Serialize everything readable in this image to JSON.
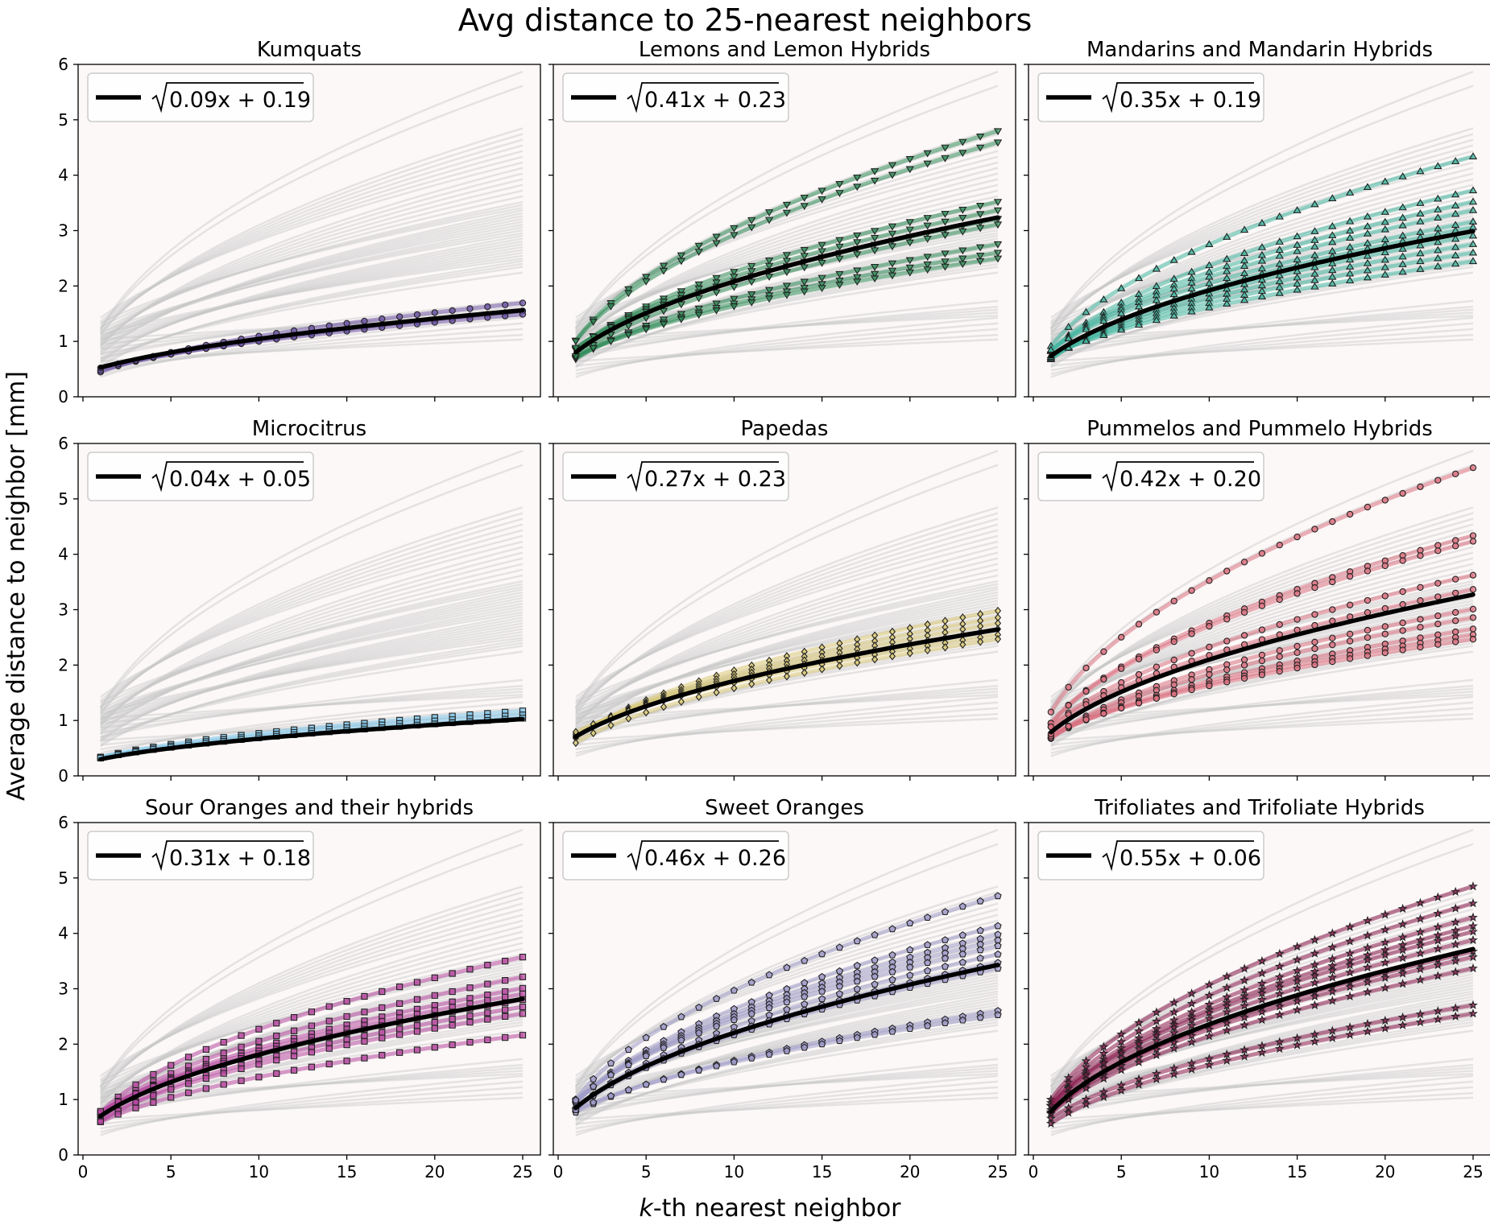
{
  "figure": {
    "title": "Avg distance to 25-nearest neighbors",
    "xlabel_italic": "k",
    "xlabel_rest": "-th nearest neighbor",
    "ylabel": "Average distance to neighbor [mm]"
  },
  "chart_data": [
    {
      "type": "line",
      "title": "Kumquats",
      "legend": "0.09x + 0.19",
      "fit": {
        "a": 0.09,
        "b": 0.19
      },
      "color": "#6a51a3",
      "marker": "circle",
      "curves": [
        1.66,
        1.52,
        1.46
      ],
      "x": [
        1,
        25
      ],
      "xlim": [
        0,
        25
      ],
      "ylim": [
        0,
        6
      ],
      "xticks": [
        0,
        5,
        10,
        15,
        20,
        25
      ],
      "yticks": [
        0,
        1,
        2,
        3,
        4,
        5,
        6
      ],
      "legend_position": "top-left",
      "background_curves": "grey fits of all other samples"
    },
    {
      "type": "line",
      "title": "Lemons and Lemon Hybrids",
      "legend": "0.41x + 0.23",
      "fit": {
        "a": 0.41,
        "b": 0.23
      },
      "color": "#2e8b57",
      "marker": "triangle-down",
      "curves": [
        4.7,
        4.5,
        3.45,
        3.3,
        3.15,
        3.05,
        2.7,
        2.55,
        2.45
      ],
      "x": [
        1,
        25
      ],
      "xlim": [
        0,
        25
      ],
      "ylim": [
        0,
        6
      ],
      "xticks": [
        0,
        5,
        10,
        15,
        20,
        25
      ],
      "yticks": [
        0,
        1,
        2,
        3,
        4,
        5,
        6
      ],
      "legend_position": "top-left",
      "background_curves": "grey fits of all other samples"
    },
    {
      "type": "line",
      "title": "Mandarins and Mandarin Hybrids",
      "legend": "0.35x + 0.19",
      "fit": {
        "a": 0.35,
        "b": 0.19
      },
      "color": "#41b6a0",
      "marker": "triangle-up",
      "curves": [
        4.25,
        3.65,
        3.45,
        3.3,
        3.1,
        3.0,
        2.85,
        2.7,
        2.55,
        2.4
      ],
      "x": [
        1,
        25
      ],
      "xlim": [
        0,
        25
      ],
      "ylim": [
        0,
        6
      ],
      "xticks": [
        0,
        5,
        10,
        15,
        20,
        25
      ],
      "yticks": [
        0,
        1,
        2,
        3,
        4,
        5,
        6
      ],
      "legend_position": "top-left",
      "background_curves": "grey fits of all other samples"
    },
    {
      "type": "line",
      "title": "Microcitrus",
      "legend": "0.04x + 0.05",
      "fit": {
        "a": 0.04,
        "b": 0.05
      },
      "color": "#7ec3e6",
      "marker": "square",
      "curves": [
        1.15,
        1.08,
        1.02
      ],
      "x": [
        1,
        25
      ],
      "xlim": [
        0,
        25
      ],
      "ylim": [
        0,
        6
      ],
      "xticks": [
        0,
        5,
        10,
        15,
        20,
        25
      ],
      "yticks": [
        0,
        1,
        2,
        3,
        4,
        5,
        6
      ],
      "legend_position": "top-left",
      "background_curves": "grey fits of all other samples"
    },
    {
      "type": "line",
      "title": "Papedas",
      "legend": "0.27x + 0.23",
      "fit": {
        "a": 0.27,
        "b": 0.23
      },
      "color": "#d8c876",
      "marker": "diamond",
      "curves": [
        2.92,
        2.8,
        2.7,
        2.6,
        2.5,
        2.42
      ],
      "x": [
        1,
        25
      ],
      "xlim": [
        0,
        25
      ],
      "ylim": [
        0,
        6
      ],
      "xticks": [
        0,
        5,
        10,
        15,
        20,
        25
      ],
      "yticks": [
        0,
        1,
        2,
        3,
        4,
        5,
        6
      ],
      "legend_position": "top-left",
      "background_curves": "grey fits of all other samples"
    },
    {
      "type": "line",
      "title": "Pummelos and Pummelo Hybrids",
      "legend": "0.42x + 0.20",
      "fit": {
        "a": 0.42,
        "b": 0.2
      },
      "color": "#d9707f",
      "marker": "circle",
      "curves": [
        5.45,
        4.25,
        4.15,
        3.55,
        3.3,
        2.95,
        2.8,
        2.6,
        2.5,
        2.42
      ],
      "x": [
        1,
        25
      ],
      "xlim": [
        0,
        25
      ],
      "ylim": [
        0,
        6
      ],
      "xticks": [
        0,
        5,
        10,
        15,
        20,
        25
      ],
      "yticks": [
        0,
        1,
        2,
        3,
        4,
        5,
        6
      ],
      "legend_position": "top-left",
      "background_curves": "grey fits of all other samples"
    },
    {
      "type": "line",
      "title": "Sour Oranges and their hybrids",
      "legend": "0.31x + 0.18",
      "fit": {
        "a": 0.31,
        "b": 0.18
      },
      "color": "#b5479f",
      "marker": "square",
      "curves": [
        3.5,
        3.15,
        2.95,
        2.85,
        2.75,
        2.62,
        2.5,
        2.12
      ],
      "x": [
        1,
        25
      ],
      "xlim": [
        0,
        25
      ],
      "ylim": [
        0,
        6
      ],
      "xticks": [
        0,
        5,
        10,
        15,
        20,
        25
      ],
      "yticks": [
        0,
        1,
        2,
        3,
        4,
        5,
        6
      ],
      "legend_position": "top-left",
      "background_curves": "grey fits of all other samples"
    },
    {
      "type": "line",
      "title": "Sweet Oranges",
      "legend": "0.46x + 0.26",
      "fit": {
        "a": 0.46,
        "b": 0.26
      },
      "color": "#9e9ac8",
      "marker": "pentagon",
      "curves": [
        4.58,
        4.05,
        3.9,
        3.8,
        3.7,
        3.55,
        3.4,
        3.3,
        2.55,
        2.48
      ],
      "x": [
        1,
        25
      ],
      "xlim": [
        0,
        25
      ],
      "ylim": [
        0,
        6
      ],
      "xticks": [
        0,
        5,
        10,
        15,
        20,
        25
      ],
      "yticks": [
        0,
        1,
        2,
        3,
        4,
        5,
        6
      ],
      "legend_position": "top-left",
      "background_curves": "grey fits of all other samples"
    },
    {
      "type": "line",
      "title": "Trifoliates and Trifoliate Hybrids",
      "legend": "0.55x + 0.06",
      "fit": {
        "a": 0.55,
        "b": 0.06
      },
      "color": "#8b1c4f",
      "marker": "star",
      "curves": [
        4.75,
        4.45,
        4.2,
        4.05,
        3.95,
        3.8,
        3.6,
        3.5,
        3.3,
        2.65,
        2.5
      ],
      "x": [
        1,
        25
      ],
      "xlim": [
        0,
        25
      ],
      "ylim": [
        0,
        6
      ],
      "xticks": [
        0,
        5,
        10,
        15,
        20,
        25
      ],
      "yticks": [
        0,
        1,
        2,
        3,
        4,
        5,
        6
      ],
      "legend_position": "top-left",
      "background_curves": "grey fits of all other samples"
    }
  ],
  "background_endpoints": [
    5.75,
    5.5,
    4.75,
    4.65,
    4.55,
    4.45,
    4.35,
    4.25,
    4.15,
    4.05,
    3.95,
    3.85,
    3.75,
    3.65,
    3.55,
    3.45,
    3.4,
    3.35,
    3.3,
    3.25,
    3.2,
    3.15,
    3.1,
    3.05,
    3.0,
    2.95,
    2.9,
    2.85,
    2.8,
    2.75,
    2.7,
    2.65,
    2.6,
    2.55,
    2.5,
    2.45,
    2.4,
    2.35,
    2.3,
    2.2,
    1.7,
    1.6,
    1.55,
    1.5,
    1.45,
    1.4,
    1.3,
    1.2,
    1.1,
    1.02
  ],
  "style": {
    "panel_bg": "#fcf8f7",
    "background_curve_color": "#c8c8c8",
    "fit_color": "#000000"
  }
}
